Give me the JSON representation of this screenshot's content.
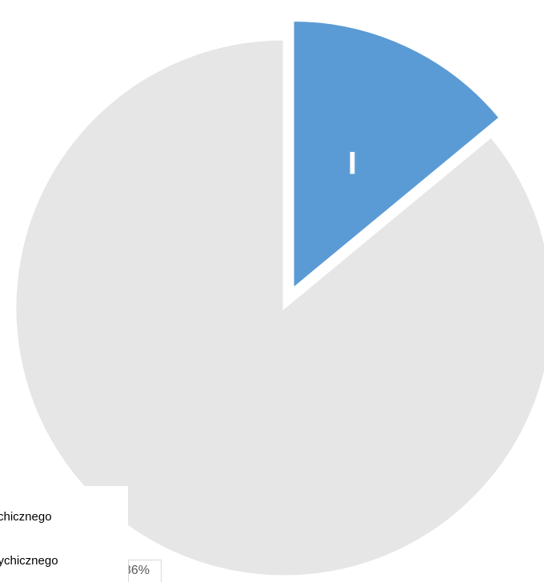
{
  "chart_data": {
    "type": "pie",
    "title": "",
    "slices": [
      {
        "value": 14,
        "color": "#5b9bd5",
        "exploded": true,
        "data_label": "I"
      },
      {
        "value": 86,
        "color": "#e6e6e6",
        "exploded": false
      }
    ],
    "legend": {
      "placement": "bottom-left",
      "entries": [
        "chicznego",
        "sychicznego"
      ]
    },
    "data_labels": [
      "I",
      "86%"
    ]
  }
}
